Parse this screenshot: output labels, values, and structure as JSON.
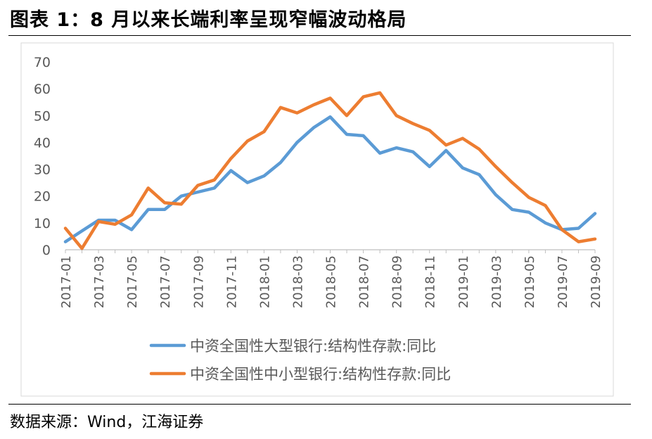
{
  "header": {
    "title": "图表 1：8 月以来长端利率呈现窄幅波动格局"
  },
  "footer": {
    "source": "数据来源：Wind，江海证券"
  },
  "chart_data": {
    "type": "line",
    "title": "",
    "xlabel": "",
    "ylabel": "",
    "ylim": [
      0,
      70
    ],
    "yticks": [
      0,
      10,
      20,
      30,
      40,
      50,
      60,
      70
    ],
    "grid": false,
    "legend_position": "bottom",
    "categories": [
      "2017-01",
      "2017-02",
      "2017-03",
      "2017-04",
      "2017-05",
      "2017-06",
      "2017-07",
      "2017-08",
      "2017-09",
      "2017-10",
      "2017-11",
      "2017-12",
      "2018-01",
      "2018-02",
      "2018-03",
      "2018-04",
      "2018-05",
      "2018-06",
      "2018-07",
      "2018-08",
      "2018-09",
      "2018-10",
      "2018-11",
      "2018-12",
      "2019-01",
      "2019-02",
      "2019-03",
      "2019-04",
      "2019-05",
      "2019-06",
      "2019-07",
      "2019-08",
      "2019-09"
    ],
    "tick_labels": [
      "2017-01",
      "2017-03",
      "2017-05",
      "2017-07",
      "2017-09",
      "2017-11",
      "2018-01",
      "2018-03",
      "2018-05",
      "2018-07",
      "2018-09",
      "2018-11",
      "2019-01",
      "2019-03",
      "2019-05",
      "2019-07",
      "2019-09"
    ],
    "series": [
      {
        "name": "中资全国性大型银行:结构性存款:同比",
        "color": "#5B9BD5",
        "values": [
          3,
          7,
          11,
          11,
          7.5,
          15,
          15,
          20,
          21.5,
          23,
          29.5,
          25,
          27.5,
          32.5,
          40,
          45.5,
          49.5,
          43,
          42.5,
          36,
          38,
          36.5,
          31,
          37,
          30.5,
          28,
          20.5,
          15,
          14,
          10,
          7.5,
          8,
          13.5
        ]
      },
      {
        "name": "中资全国性中小型银行:结构性存款:同比",
        "color": "#ED7D31",
        "values": [
          8,
          0.5,
          10.5,
          9.5,
          13,
          23,
          17.5,
          17,
          24,
          26,
          34,
          40.5,
          44,
          53,
          51,
          54,
          56.5,
          50,
          57,
          58.5,
          50,
          47,
          44.5,
          39,
          41.5,
          37.5,
          31,
          25,
          19.5,
          16.5,
          7.5,
          3,
          4
        ]
      }
    ]
  }
}
